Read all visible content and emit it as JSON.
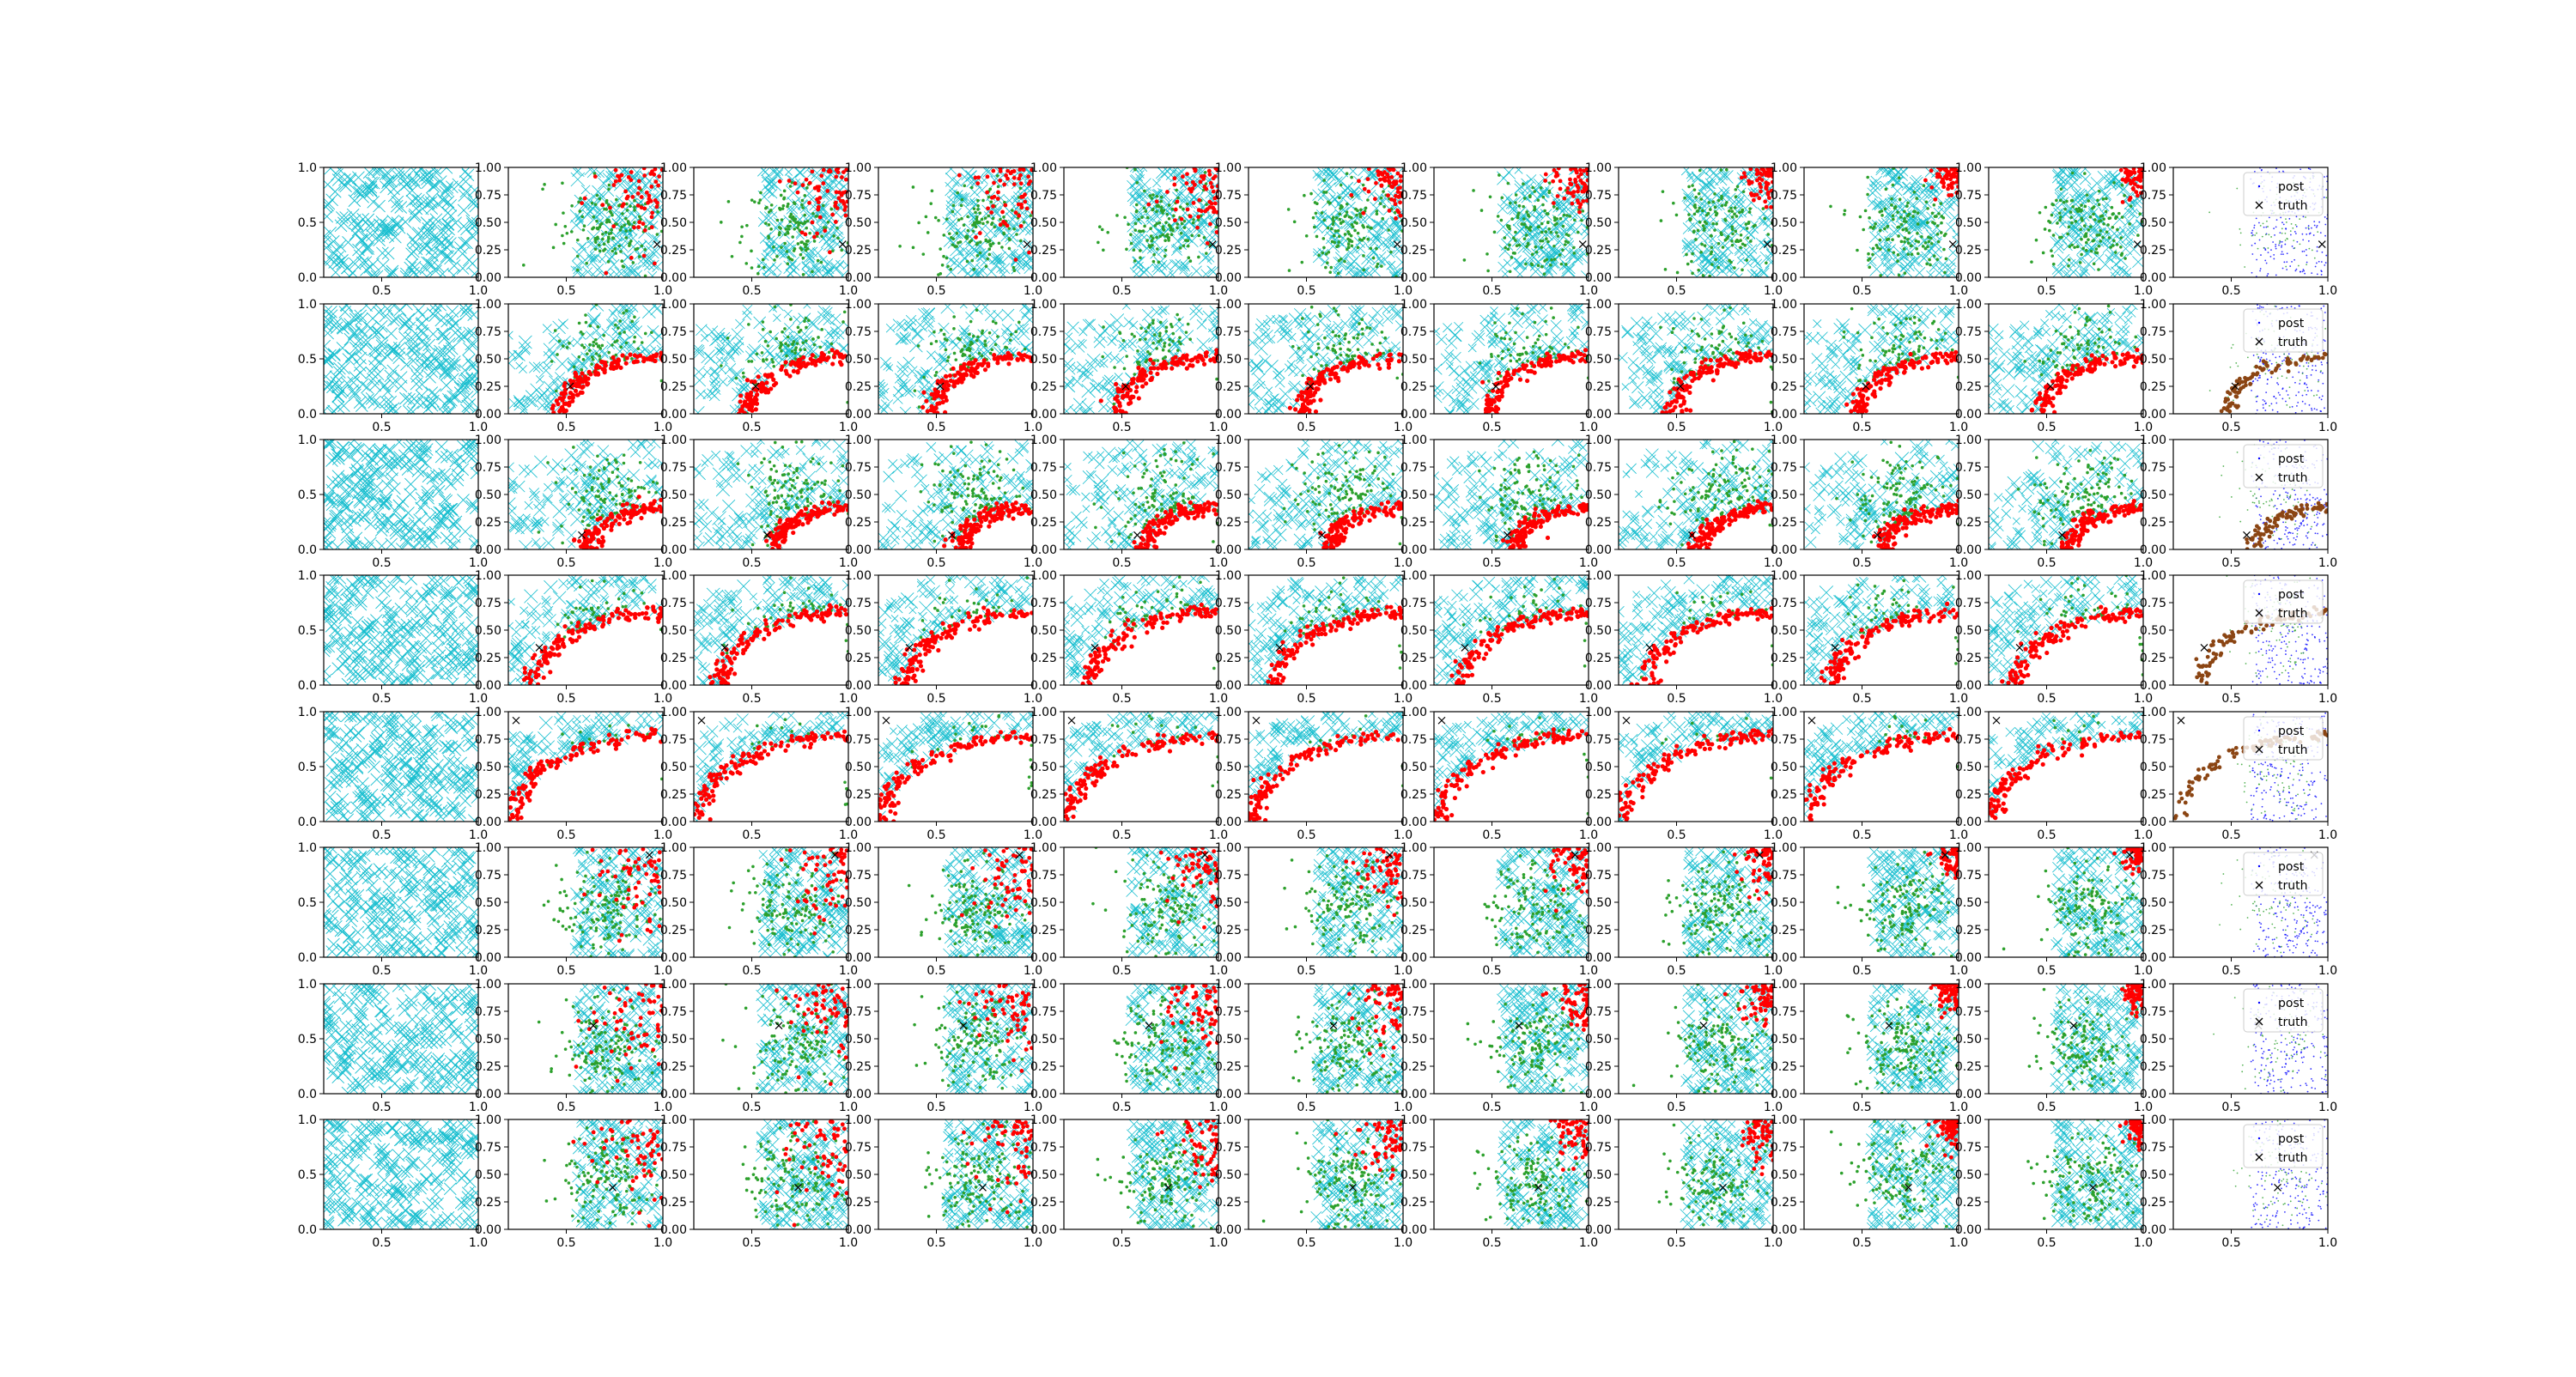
{
  "colors": {
    "samples_marker": "#17becf",
    "points": "#2ca02c",
    "band": "#ff0000",
    "post": "#0000ff",
    "truth": "#000000",
    "axis": "#000000"
  },
  "chart_data": {
    "type": "scatter",
    "layout": "grid of subplots, 8 rows x 11 columns",
    "rows": 8,
    "cols": 11,
    "xlim": [
      0.2,
      1.0
    ],
    "ylim": [
      0.0,
      1.0
    ],
    "first_col": {
      "xticks": [
        "0.5",
        "1.0"
      ],
      "yticks": [
        "0.0",
        "0.5",
        "1.0"
      ]
    },
    "other_cols": {
      "xticks": [
        "0.5",
        "1.0"
      ],
      "yticks": [
        "0.00",
        "0.25",
        "0.50",
        "0.75",
        "1.00"
      ]
    },
    "legend": {
      "placement": "top-right of last column in each row",
      "entries": [
        {
          "label": "post",
          "marker": "dot"
        },
        {
          "label": "truth",
          "marker": "x"
        }
      ]
    },
    "series_styles": [
      {
        "marker": "x",
        "color": "cyan"
      },
      {
        "marker": "dot",
        "color": "green"
      },
      {
        "marker": "dot",
        "color": "red"
      },
      {
        "marker": "dot",
        "color": "blue"
      },
      {
        "marker": "x",
        "color": "black"
      }
    ],
    "row_params": [
      {
        "truth": [
          0.97,
          0.3
        ],
        "band_r": 0.0
      },
      {
        "truth": [
          0.52,
          0.25
        ],
        "band_r": 0.52
      },
      {
        "truth": [
          0.58,
          0.13
        ],
        "band_r": 0.38
      },
      {
        "truth": [
          0.36,
          0.34
        ],
        "band_r": 0.66
      },
      {
        "truth": [
          0.24,
          0.92
        ],
        "band_r": 0.78
      },
      {
        "truth": [
          0.93,
          0.93
        ],
        "band_r": 0.0
      },
      {
        "truth": [
          0.64,
          0.62
        ],
        "band_r": 0.0
      },
      {
        "truth": [
          0.74,
          0.38
        ],
        "band_r": 0.0
      }
    ]
  }
}
